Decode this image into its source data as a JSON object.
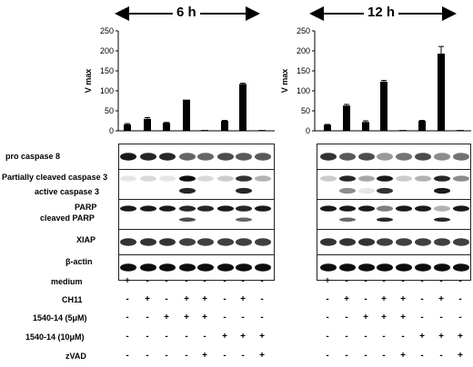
{
  "panels": [
    {
      "time_label": "6 h"
    },
    {
      "time_label": "12 h"
    }
  ],
  "chart_data": [
    {
      "type": "bar",
      "title": "6 h",
      "ylabel": "V max",
      "ylim": [
        0,
        250
      ],
      "yticks": [
        0,
        50,
        100,
        150,
        200,
        250
      ],
      "values": [
        16,
        30,
        20,
        78,
        2,
        25,
        117,
        2
      ],
      "errors": [
        2,
        3,
        1,
        0,
        0,
        1,
        2,
        0
      ]
    },
    {
      "type": "bar",
      "title": "12 h",
      "ylabel": "V max",
      "ylim": [
        0,
        250
      ],
      "yticks": [
        0,
        50,
        100,
        150,
        200,
        250
      ],
      "values": [
        15,
        63,
        22,
        123,
        2,
        25,
        193,
        2
      ],
      "errors": [
        1,
        3,
        3,
        3,
        0,
        1,
        18,
        0
      ]
    }
  ],
  "blot_labels": {
    "pro_caspase_8": "pro caspase 8",
    "partially_cleaved_caspase_3": "Partially cleaved caspase 3",
    "active_caspase_3": "active caspase 3",
    "parp": "PARP",
    "cleaved_parp": "cleaved PARP",
    "xiap": "XIAP",
    "beta_actin": "β-actin"
  },
  "conditions": [
    {
      "label": "medium",
      "signs": [
        "+",
        "-",
        "-",
        "-",
        "-",
        "-",
        "-",
        "-"
      ]
    },
    {
      "label": "CH11",
      "signs": [
        "-",
        "+",
        "-",
        "+",
        "+",
        "-",
        "+",
        "-"
      ]
    },
    {
      "label": "1540-14 (5μM)",
      "signs": [
        "-",
        "-",
        "+",
        "+",
        "+",
        "-",
        "-",
        "-"
      ]
    },
    {
      "label": "1540-14 (10μM)",
      "signs": [
        "-",
        "-",
        "-",
        "-",
        "-",
        "+",
        "+",
        "+"
      ]
    },
    {
      "label": "zVAD",
      "signs": [
        "-",
        "-",
        "-",
        "-",
        "+",
        "-",
        "-",
        "+"
      ]
    }
  ]
}
